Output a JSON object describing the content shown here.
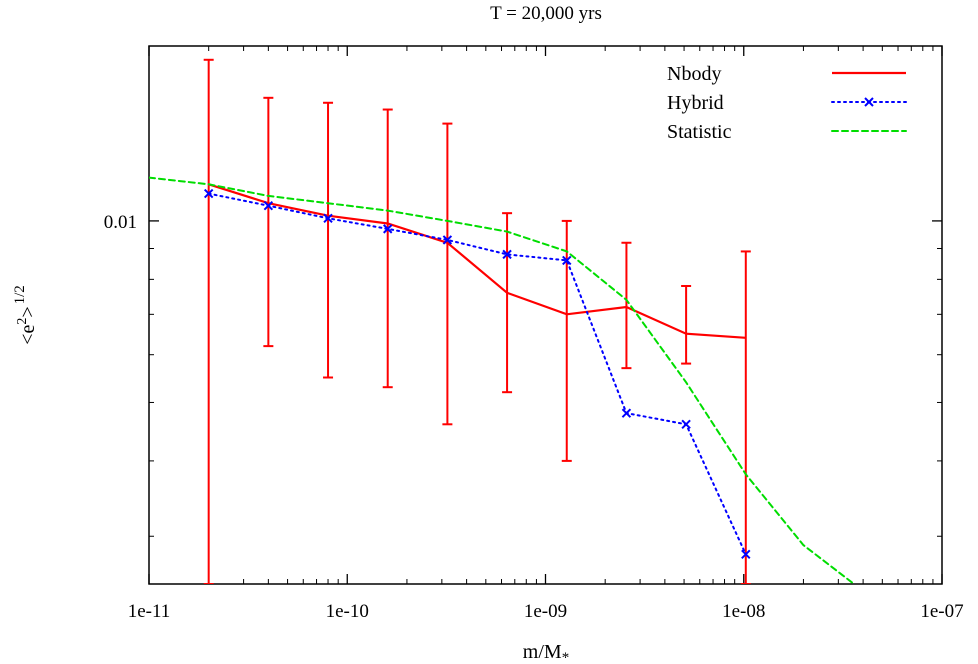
{
  "chart_data": {
    "type": "line",
    "title": "T = 20,000 yrs",
    "xlabel": "m/M",
    "xlabel_sub": "*",
    "ylabel": "<e",
    "ylabel_sup": "2",
    "ylabel_tail": ">",
    "ylabel_pow": "1/2",
    "x_scale": "log",
    "y_scale": "log",
    "xlim": [
      1e-11,
      1e-07
    ],
    "ylim": [
      0.0025,
      0.0195
    ],
    "x_ticks": [
      {
        "value": 1e-11,
        "label": "1e-11"
      },
      {
        "value": 1e-10,
        "label": "1e-10"
      },
      {
        "value": 1e-09,
        "label": "1e-09"
      },
      {
        "value": 1e-08,
        "label": "1e-08"
      },
      {
        "value": 1e-07,
        "label": "1e-07"
      }
    ],
    "y_ticks": [
      {
        "value": 0.01,
        "label": "0.01"
      }
    ],
    "y_minor_ticks": [
      0.003,
      0.004,
      0.005,
      0.006,
      0.007,
      0.008,
      0.009
    ],
    "grid": false,
    "legend_position": "top-right",
    "series": [
      {
        "name": "Nbody",
        "color": "#ff0000",
        "style": "solid",
        "x": [
          2e-11,
          4e-11,
          8e-11,
          1.6e-10,
          3.2e-10,
          6.4e-10,
          1.28e-09,
          2.56e-09,
          5.12e-09,
          1.024e-08
        ],
        "y": [
          0.0115,
          0.0107,
          0.0102,
          0.0099,
          0.0092,
          0.0076,
          0.007,
          0.0072,
          0.0065,
          0.0064
        ],
        "y_err_low": [
          0.0025,
          0.0062,
          0.0055,
          0.0053,
          0.0046,
          0.0052,
          0.004,
          0.0057,
          0.0058,
          0.0025
        ],
        "y_err_high": [
          0.0185,
          0.016,
          0.0157,
          0.0153,
          0.0145,
          0.0103,
          0.01,
          0.0092,
          0.0078,
          0.0089
        ]
      },
      {
        "name": "Hybrid",
        "color": "#0000ff",
        "style": "dotted",
        "marker": "x",
        "x": [
          2e-11,
          4e-11,
          8e-11,
          1.6e-10,
          3.2e-10,
          6.4e-10,
          1.28e-09,
          2.56e-09,
          5.12e-09,
          1.024e-08
        ],
        "y": [
          0.0111,
          0.0106,
          0.0101,
          0.0097,
          0.0093,
          0.0088,
          0.0086,
          0.0048,
          0.0046,
          0.0028
        ]
      },
      {
        "name": "Statistic",
        "color": "#00dd00",
        "style": "dashed",
        "x": [
          1e-11,
          2e-11,
          4e-11,
          8e-11,
          1.6e-10,
          3.2e-10,
          6.4e-10,
          1.28e-09,
          2.56e-09,
          5.12e-09,
          1.024e-08,
          2e-08,
          3.6e-08
        ],
        "y": [
          0.0118,
          0.0115,
          0.011,
          0.0107,
          0.0104,
          0.01,
          0.0096,
          0.0089,
          0.0074,
          0.0054,
          0.0038,
          0.0029,
          0.0025
        ]
      }
    ]
  }
}
